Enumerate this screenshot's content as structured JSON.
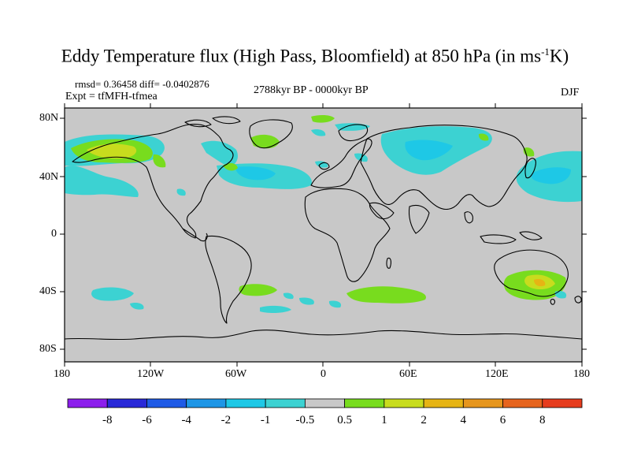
{
  "title": {
    "main": "Eddy Temperature flux (High Pass, Bloomfield) at 850 hPa (in ms",
    "superscript": "-1",
    "suffix": "K)"
  },
  "stats": "rmsd= 0.36458 diff= -0.0402876",
  "experiment": "Expt = tfMFH-tfmea",
  "period": "2788kyr BP - 0000kyr BP",
  "season": "DJF",
  "axes": {
    "y_ticks": [
      "80N",
      "40N",
      "0",
      "40S",
      "80S"
    ],
    "x_ticks": [
      "180",
      "120W",
      "60W",
      "0",
      "60E",
      "120E",
      "180"
    ]
  },
  "colorbar": {
    "labels": [
      "-8",
      "-6",
      "-4",
      "-2",
      "-1",
      "-0.5",
      "0.5",
      "1",
      "2",
      "4",
      "6",
      "8"
    ],
    "colors": [
      "#8c1eec",
      "#2828d8",
      "#1e5ae6",
      "#1e96e6",
      "#1ec8e6",
      "#3cd2d2",
      "#c8c8c8",
      "#78dc1e",
      "#c8dc1e",
      "#e6b414",
      "#e6961e",
      "#e6641e",
      "#e63c1e"
    ]
  },
  "colors": {
    "land_background": "#c8c8c8",
    "coast": "#000000"
  }
}
